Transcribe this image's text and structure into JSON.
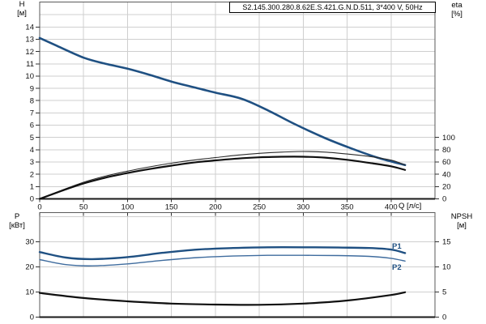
{
  "title": "S2.145.300.280.8.62E.S.421.G.N.D.511, 3*400 V, 50Hz",
  "labels": {
    "p1": "P1",
    "p2": "P2"
  },
  "colors": {
    "curve_blue": "#1f5082",
    "curve_blue_light": "#3f6c9e",
    "curve_black": "#101010",
    "grid": "#cfcfcf",
    "frame": "#5a5a5a",
    "axis_dark": "#1a1a1a"
  },
  "chart_data": [
    {
      "type": "line",
      "panel": "top",
      "title": "S2.145.300.280.8.62E.S.421.G.N.D.511, 3*400 V, 50Hz",
      "x_axis": {
        "label": "Q [л/с]",
        "min": 0,
        "max": 450,
        "grid_step": 50,
        "ticks": [
          0,
          50,
          100,
          150,
          200,
          250,
          300,
          350,
          400
        ]
      },
      "left_axis": {
        "name": "H",
        "unit": "[м]",
        "min": 0,
        "max": 16.03,
        "grid_step": 1,
        "ticks": [
          0,
          1,
          2,
          3,
          4,
          5,
          6,
          7,
          8,
          9,
          10,
          11,
          12,
          13,
          14
        ]
      },
      "right_axis": {
        "name": "eta",
        "unit": "[%]",
        "min": 0,
        "max": 320,
        "ticks": [
          0,
          20,
          40,
          60,
          80,
          100
        ]
      },
      "series": [
        {
          "name": "H-curve",
          "axis": "left",
          "color": "#1f5082",
          "width": 2.6,
          "points": [
            [
              0,
              13.1
            ],
            [
              20,
              12.45
            ],
            [
              50,
              11.5
            ],
            [
              75,
              11.0
            ],
            [
              100,
              10.6
            ],
            [
              125,
              10.1
            ],
            [
              150,
              9.55
            ],
            [
              175,
              9.1
            ],
            [
              200,
              8.65
            ],
            [
              230,
              8.15
            ],
            [
              260,
              7.2
            ],
            [
              290,
              6.1
            ],
            [
              325,
              4.95
            ],
            [
              355,
              4.1
            ],
            [
              385,
              3.35
            ],
            [
              416,
              2.75
            ]
          ]
        },
        {
          "name": "eta-pump",
          "axis": "right",
          "color": "#2a2a2a",
          "width": 1.1,
          "points": [
            [
              0,
              0
            ],
            [
              25,
              14
            ],
            [
              50,
              27
            ],
            [
              75,
              37
            ],
            [
              100,
              45
            ],
            [
              125,
              52
            ],
            [
              150,
              58
            ],
            [
              175,
              63
            ],
            [
              200,
              67
            ],
            [
              225,
              71
            ],
            [
              250,
              74
            ],
            [
              275,
              76
            ],
            [
              300,
              77
            ],
            [
              325,
              76
            ],
            [
              350,
              73
            ],
            [
              375,
              69
            ],
            [
              400,
              63
            ],
            [
              416,
              55
            ]
          ]
        },
        {
          "name": "eta-pump-motor",
          "axis": "right",
          "color": "#101010",
          "width": 2.2,
          "points": [
            [
              0,
              0
            ],
            [
              25,
              13
            ],
            [
              50,
              25
            ],
            [
              75,
              34.5
            ],
            [
              100,
              42
            ],
            [
              125,
              48.5
            ],
            [
              150,
              54
            ],
            [
              175,
              59
            ],
            [
              200,
              62.5
            ],
            [
              225,
              65.5
            ],
            [
              250,
              67.5
            ],
            [
              275,
              68.5
            ],
            [
              300,
              68.5
            ],
            [
              325,
              67
            ],
            [
              350,
              63.5
            ],
            [
              375,
              58.5
            ],
            [
              400,
              53
            ],
            [
              416,
              47
            ]
          ]
        }
      ]
    },
    {
      "type": "line",
      "panel": "bottom",
      "x_axis": {
        "label": "",
        "min": 0,
        "max": 450,
        "grid_step": 50,
        "ticks": [
          0,
          50,
          100,
          150,
          200,
          250,
          300,
          350,
          400
        ]
      },
      "left_axis": {
        "name": "P",
        "unit": "[кВт]",
        "min": 0,
        "max": 41.6,
        "grid_step": 10,
        "ticks": [
          0,
          10,
          20,
          30
        ]
      },
      "right_axis": {
        "name": "NPSH",
        "unit": "[м]",
        "min": 0,
        "max": 20.8,
        "ticks": [
          0,
          5,
          10,
          15
        ]
      },
      "series": [
        {
          "name": "P1",
          "axis": "left",
          "color": "#1f5082",
          "width": 2.4,
          "points": [
            [
              0,
              25.9
            ],
            [
              30,
              23.7
            ],
            [
              60,
              23.1
            ],
            [
              100,
              23.9
            ],
            [
              140,
              25.6
            ],
            [
              180,
              26.9
            ],
            [
              220,
              27.5
            ],
            [
              260,
              27.8
            ],
            [
              300,
              27.8
            ],
            [
              340,
              27.7
            ],
            [
              375,
              27.5
            ],
            [
              400,
              26.9
            ],
            [
              416,
              25.5
            ]
          ]
        },
        {
          "name": "P2",
          "axis": "left",
          "color": "#3f6c9e",
          "width": 1.4,
          "points": [
            [
              0,
              22.9
            ],
            [
              30,
              20.9
            ],
            [
              60,
              20.4
            ],
            [
              100,
              21.2
            ],
            [
              140,
              22.6
            ],
            [
              180,
              23.7
            ],
            [
              220,
              24.3
            ],
            [
              260,
              24.6
            ],
            [
              300,
              24.6
            ],
            [
              340,
              24.5
            ],
            [
              375,
              24.2
            ],
            [
              400,
              23.4
            ],
            [
              416,
              22.3
            ]
          ]
        },
        {
          "name": "NPSH",
          "axis": "right",
          "color": "#101010",
          "width": 2.2,
          "points": [
            [
              0,
              4.8
            ],
            [
              50,
              3.8
            ],
            [
              100,
              3.15
            ],
            [
              150,
              2.7
            ],
            [
              200,
              2.5
            ],
            [
              250,
              2.45
            ],
            [
              300,
              2.7
            ],
            [
              350,
              3.3
            ],
            [
              400,
              4.4
            ],
            [
              416,
              4.95
            ]
          ]
        }
      ]
    }
  ]
}
